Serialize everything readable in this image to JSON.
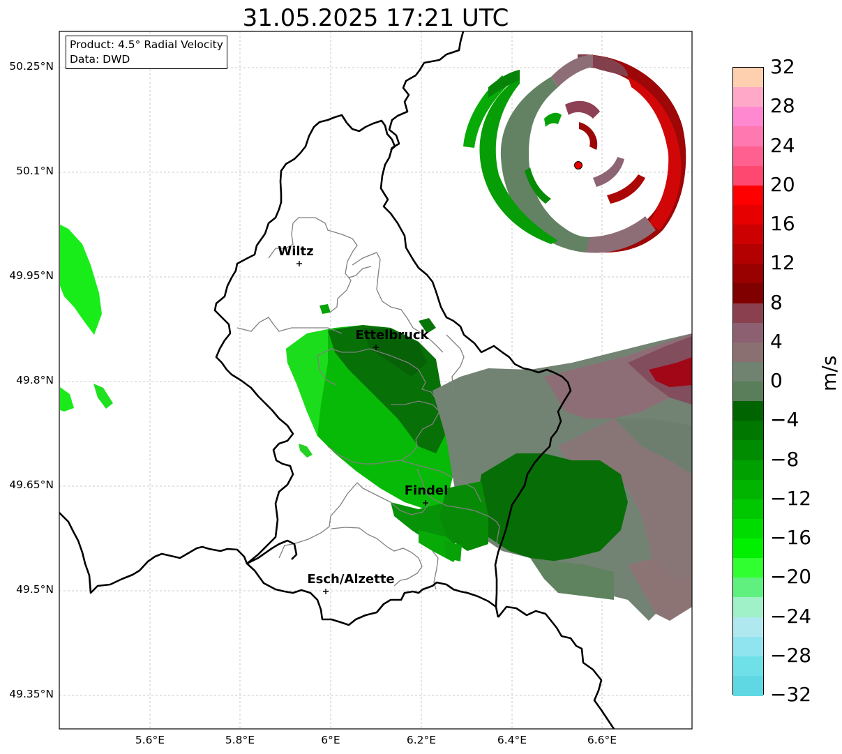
{
  "title": "31.05.2025 17:21 UTC",
  "info": {
    "product": "Product: 4.5° Radial Velocity",
    "data_source": "Data: DWD"
  },
  "axes": {
    "y_ticks": [
      "50.25°N",
      "50.1°N",
      "49.95°N",
      "49.8°N",
      "49.65°N",
      "49.5°N",
      "49.35°N"
    ],
    "x_ticks": [
      "5.6°E",
      "5.8°E",
      "6°E",
      "6.2°E",
      "6.4°E",
      "6.6°E"
    ]
  },
  "cities": [
    {
      "name": "Wiltz"
    },
    {
      "name": "Ettelbruck"
    },
    {
      "name": "Findel"
    },
    {
      "name": "Esch/Alzette"
    }
  ],
  "colorbar": {
    "unit": "m/s",
    "labels": [
      "32",
      "28",
      "24",
      "20",
      "16",
      "12",
      "8",
      "4",
      "0",
      "−4",
      "−8",
      "−12",
      "−16",
      "−20",
      "−24",
      "−28",
      "−32"
    ],
    "min": -32,
    "max": 32,
    "step": 4,
    "colors_top_to_bottom": [
      "#ffd0b0",
      "#ffa8c8",
      "#ff88d0",
      "#ff78b0",
      "#ff6090",
      "#ff4870",
      "#ff0000",
      "#e60000",
      "#cc0000",
      "#b30000",
      "#990000",
      "#800000",
      "#8b4050",
      "#8c6070",
      "#8a7070",
      "#708270",
      "#5a7e5a",
      "#006400",
      "#007800",
      "#008c00",
      "#00a000",
      "#00b400",
      "#00c800",
      "#00dc00",
      "#00f000",
      "#30ff30",
      "#60f080",
      "#a0f0c8",
      "#b0e8f0",
      "#90e4f0",
      "#70e0e8",
      "#60d8e4"
    ]
  },
  "radar_site_color": "#e60000"
}
